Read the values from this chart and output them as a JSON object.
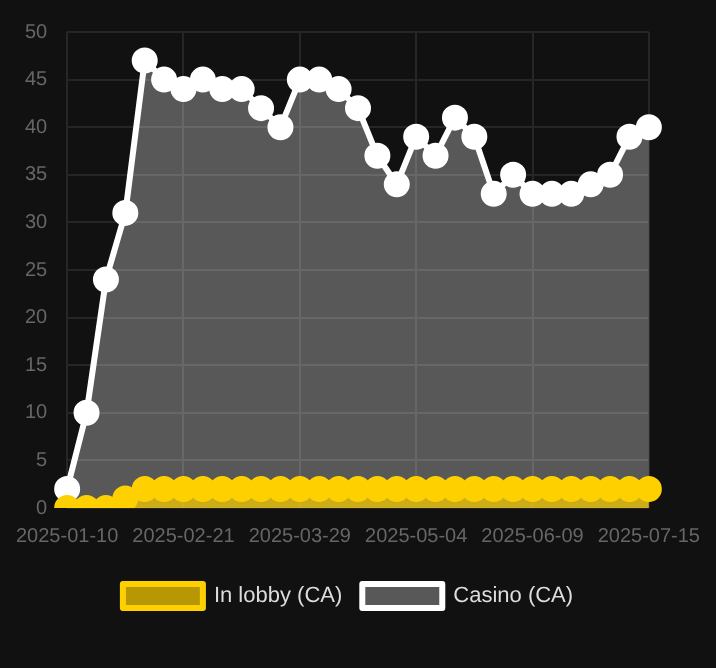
{
  "chart_data": {
    "type": "area",
    "categories": [
      "2025-01-10",
      null,
      null,
      null,
      null,
      null,
      "2025-02-21",
      null,
      null,
      null,
      null,
      null,
      "2025-03-29",
      null,
      null,
      null,
      null,
      null,
      "2025-05-04",
      null,
      null,
      null,
      null,
      null,
      "2025-06-09",
      null,
      null,
      null,
      null,
      null,
      "2025-07-15"
    ],
    "series": [
      {
        "name": "In lobby (CA)",
        "color": "#ffd000",
        "values": [
          0,
          0,
          0,
          1,
          2,
          2,
          2,
          2,
          2,
          2,
          2,
          2,
          2,
          2,
          2,
          2,
          2,
          2,
          2,
          2,
          2,
          2,
          2,
          2,
          2,
          2,
          2,
          2,
          2,
          2,
          2
        ]
      },
      {
        "name": "Casino (CA)",
        "color": "#ffffff",
        "values": [
          2,
          10,
          24,
          31,
          47,
          45,
          44,
          45,
          44,
          44,
          42,
          40,
          45,
          45,
          44,
          42,
          37,
          34,
          39,
          37,
          41,
          39,
          33,
          35,
          33,
          33,
          33,
          34,
          35,
          39,
          40
        ]
      }
    ],
    "ylim": [
      0,
      50
    ],
    "yticks": [
      0,
      5,
      10,
      15,
      20,
      25,
      30,
      35,
      40,
      45,
      50
    ],
    "grid": true,
    "legend": "bottom",
    "marker": "circle",
    "line_style": "solid"
  }
}
